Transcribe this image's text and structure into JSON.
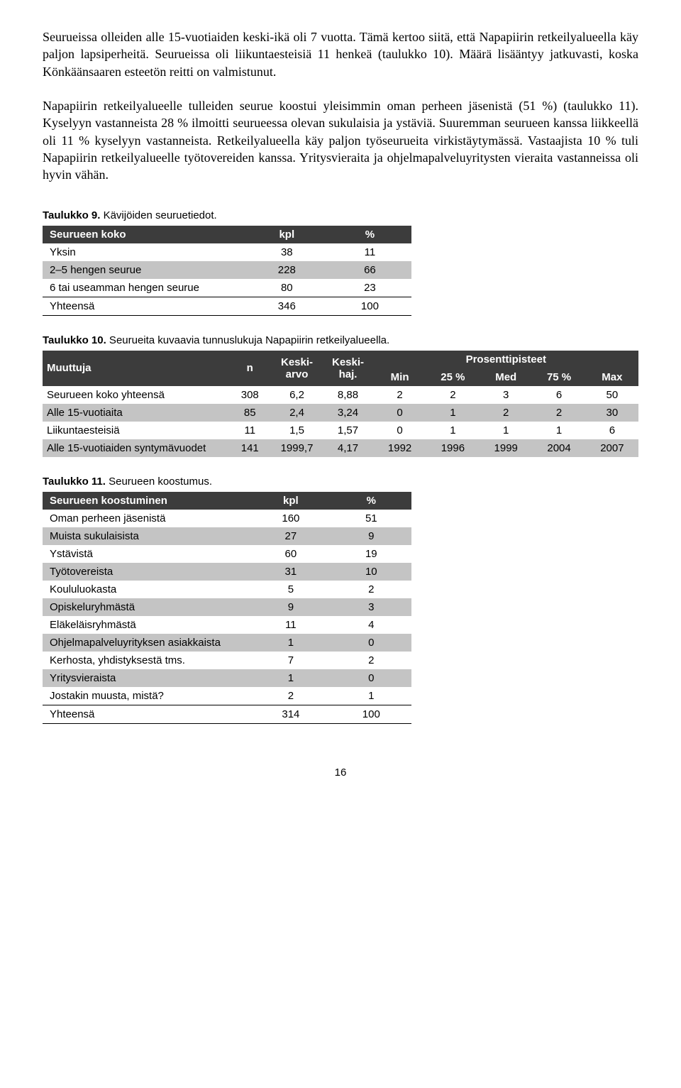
{
  "paragraph": "Seurueissa olleiden alle 15-vuotiaiden keski-ikä oli 7 vuotta. Tämä kertoo siitä, että Napapiirin retkeilyalueella käy paljon lapsiperheitä. Seurueissa oli liikuntaesteisiä 11 henkeä (taulukko 10). Määrä lisääntyy jatkuvasti, koska Könkäänsaaren esteetön reitti on valmistunut.\n\nNapapiirin retkeilyalueelle tulleiden seurue koostui yleisimmin oman perheen jäsenistä (51 %) (taulukko 11). Kyselyyn vastanneista 28 % ilmoitti seurueessa olevan sukulaisia ja ystäviä. Suuremman seurueen kanssa liikkeellä oli 11 % kyselyyn vastanneista. Retkeilyalueella käy paljon työseurueita virkistäytymässä. Vastaajista 10 % tuli Napapiirin retkeilyalueelle työtovereiden kanssa. Yritysvieraita ja ohjelmapalveluyritysten vieraita vastanneissa oli hyvin vähän.",
  "table9": {
    "caption_bold": "Taulukko 9.",
    "caption_rest": " Kävijöiden seuruetiedot.",
    "headers": [
      "Seurueen koko",
      "kpl",
      "%"
    ],
    "rows": [
      [
        "Yksin",
        "38",
        "11"
      ],
      [
        "2–5 hengen seurue",
        "228",
        "66"
      ],
      [
        "6 tai useamman hengen seurue",
        "80",
        "23"
      ]
    ],
    "total": [
      "Yhteensä",
      "346",
      "100"
    ]
  },
  "table10": {
    "caption_bold": "Taulukko 10.",
    "caption_rest": "  Seurueita kuvaavia tunnuslukuja Napapiirin retkeilyalueella.",
    "top_headers": {
      "muuttuja": "Muuttuja",
      "n": "n",
      "keskiarvo": "Keski-arvo",
      "keskihaj": "Keski-haj.",
      "prosentti": "Prosenttipisteet"
    },
    "sub_headers": [
      "Min",
      "25 %",
      "Med",
      "75 %",
      "Max"
    ],
    "rows": [
      [
        "Seurueen koko yhteensä",
        "308",
        "6,2",
        "8,88",
        "2",
        "2",
        "3",
        "6",
        "50"
      ],
      [
        "Alle 15-vuotiaita",
        "85",
        "2,4",
        "3,24",
        "0",
        "1",
        "2",
        "2",
        "30"
      ],
      [
        "Liikuntaesteisiä",
        "11",
        "1,5",
        "1,57",
        "0",
        "1",
        "1",
        "1",
        "6"
      ],
      [
        "Alle 15-vuotiaiden syntymävuodet",
        "141",
        "1999,7",
        "4,17",
        "1992",
        "1996",
        "1999",
        "2004",
        "2007"
      ]
    ]
  },
  "table11": {
    "caption_bold": "Taulukko 11.",
    "caption_rest": " Seurueen koostumus.",
    "headers": [
      "Seurueen koostuminen",
      "kpl",
      "%"
    ],
    "rows": [
      [
        "Oman perheen jäsenistä",
        "160",
        "51"
      ],
      [
        "Muista sukulaisista",
        "27",
        "9"
      ],
      [
        "Ystävistä",
        "60",
        "19"
      ],
      [
        "Työtovereista",
        "31",
        "10"
      ],
      [
        "Koululuokasta",
        "5",
        "2"
      ],
      [
        "Opiskeluryhmästä",
        "9",
        "3"
      ],
      [
        "Eläkeläisryhmästä",
        "11",
        "4"
      ],
      [
        "Ohjelmapalveluyrityksen asiakkaista",
        "1",
        "0"
      ],
      [
        "Kerhosta, yhdistyksestä tms.",
        "7",
        "2"
      ],
      [
        "Yritysvieraista",
        "1",
        "0"
      ],
      [
        "Jostakin muusta, mistä?",
        "2",
        "1"
      ]
    ],
    "total": [
      "Yhteensä",
      "314",
      "100"
    ]
  },
  "page_number": "16"
}
